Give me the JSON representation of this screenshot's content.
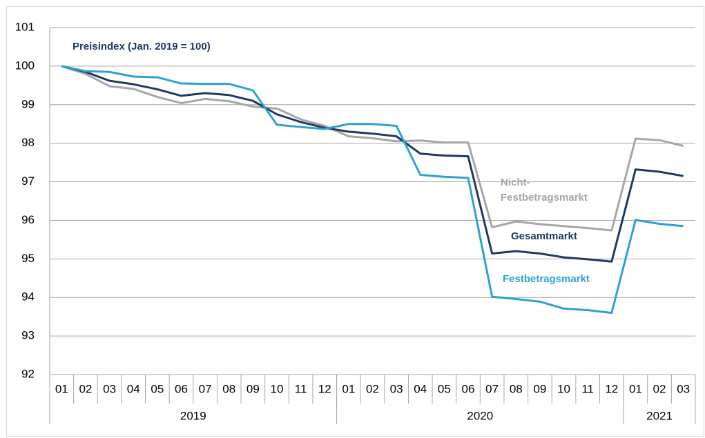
{
  "chart_data": {
    "type": "line",
    "title": "Preisindex (Jan. 2019 = 100)",
    "categories": [
      "01",
      "02",
      "03",
      "04",
      "05",
      "06",
      "07",
      "08",
      "09",
      "10",
      "11",
      "12",
      "01",
      "02",
      "03",
      "04",
      "05",
      "06",
      "07",
      "08",
      "09",
      "10",
      "11",
      "12",
      "01",
      "02",
      "03"
    ],
    "category_groups": [
      {
        "label": "2019",
        "size": 12
      },
      {
        "label": "2020",
        "size": 12
      },
      {
        "label": "2021",
        "size": 3
      }
    ],
    "series": [
      {
        "name": "Nicht-Festbetragsmarkt",
        "color": "#a6a6a6",
        "values": [
          100,
          99.8,
          99.48,
          99.41,
          99.2,
          99.04,
          99.15,
          99.09,
          98.95,
          98.9,
          98.62,
          98.45,
          98.18,
          98.13,
          98.05,
          98.07,
          98.02,
          98.02,
          95.82,
          95.97,
          95.9,
          95.85,
          95.8,
          95.74,
          98.12,
          98.08,
          97.93
        ]
      },
      {
        "name": "Gesamtmarkt",
        "color": "#1f3864",
        "values": [
          100,
          99.85,
          99.62,
          99.53,
          99.4,
          99.23,
          99.3,
          99.25,
          99.1,
          98.75,
          98.55,
          98.4,
          98.3,
          98.25,
          98.18,
          97.73,
          97.68,
          97.66,
          95.14,
          95.2,
          95.14,
          95.04,
          94.99,
          94.93,
          97.32,
          97.26,
          97.15
        ]
      },
      {
        "name": "Festbetragsmarkt",
        "color": "#2ca1d2",
        "values": [
          100,
          99.87,
          99.85,
          99.73,
          99.71,
          99.55,
          99.54,
          99.54,
          99.37,
          98.48,
          98.42,
          98.37,
          98.5,
          98.5,
          98.45,
          97.18,
          97.13,
          97.1,
          94.02,
          93.96,
          93.89,
          93.71,
          93.67,
          93.6,
          96.01,
          95.91,
          95.85
        ]
      }
    ],
    "ylim": [
      92,
      101
    ],
    "yticks": [
      92,
      93,
      94,
      95,
      96,
      97,
      98,
      99,
      100,
      101
    ],
    "grid": true
  }
}
